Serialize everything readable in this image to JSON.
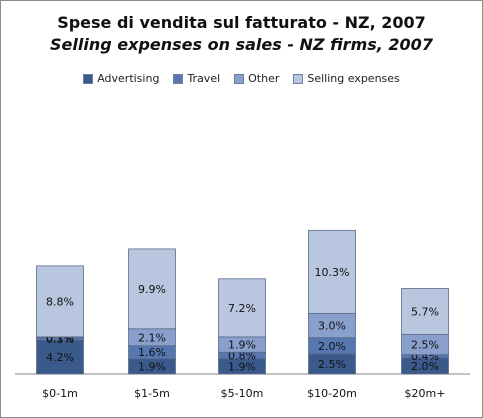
{
  "chart_data": {
    "type": "bar",
    "stacked": true,
    "title": "Spese di vendita sul fatturato - NZ, 2007",
    "subtitle": "Selling expenses on sales - NZ firms, 2007",
    "legend_position": "top",
    "categories": [
      "$0-1m",
      "$1-5m",
      "$5-10m",
      "$10-20m",
      "$20m+"
    ],
    "series": [
      {
        "name": "Advertising",
        "color": "#3a5a8c",
        "values": [
          4.2,
          1.9,
          1.9,
          2.5,
          2.0
        ],
        "labels": [
          "4.2%",
          "1.9%",
          "1.9%",
          "2.5%",
          "2.0%"
        ]
      },
      {
        "name": "Travel",
        "color": "#5677b0",
        "values": [
          0.3,
          1.6,
          0.8,
          2.0,
          0.4
        ],
        "labels": [
          "0.3%",
          "1.6%",
          "0.8%",
          "2.0%",
          "0.4%"
        ]
      },
      {
        "name": "Other",
        "color": "#8aa0cc",
        "values": [
          0.1,
          2.1,
          1.9,
          3.0,
          2.5
        ],
        "labels": [
          "0.1%",
          "2.1%",
          "1.9%",
          "3.0%",
          "2.5%"
        ]
      },
      {
        "name": "Selling expenses",
        "color": "#b9c6df",
        "values": [
          8.8,
          9.9,
          7.2,
          10.3,
          5.7
        ],
        "labels": [
          "8.8%",
          "9.9%",
          "7.2%",
          "10.3%",
          "5.7%"
        ]
      }
    ],
    "grid": false
  }
}
